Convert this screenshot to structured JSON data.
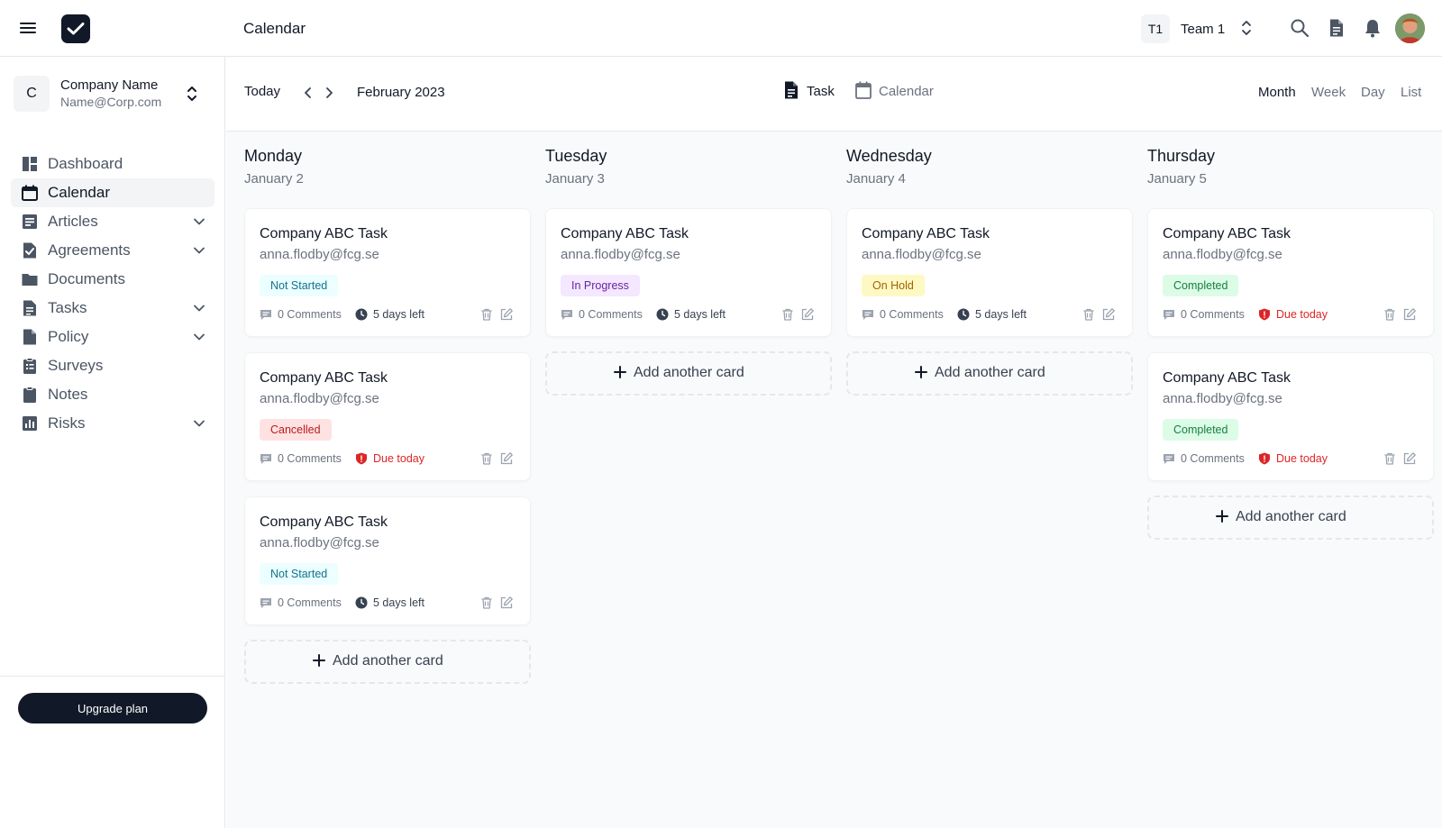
{
  "header": {
    "page_title": "Calendar",
    "team_initials": "T1",
    "team_name": "Team 1"
  },
  "sidebar": {
    "company_initial": "C",
    "company_name": "Company Name",
    "company_email": "Name@Corp.com",
    "items": [
      {
        "label": "Dashboard",
        "icon": "dashboard-icon",
        "expandable": false,
        "active": false
      },
      {
        "label": "Calendar",
        "icon": "calendar-icon",
        "expandable": false,
        "active": true
      },
      {
        "label": "Articles",
        "icon": "articles-icon",
        "expandable": true,
        "active": false
      },
      {
        "label": "Agreements",
        "icon": "agreements-icon",
        "expandable": true,
        "active": false
      },
      {
        "label": "Documents",
        "icon": "folder-icon",
        "expandable": false,
        "active": false
      },
      {
        "label": "Tasks",
        "icon": "tasks-icon",
        "expandable": true,
        "active": false
      },
      {
        "label": "Policy",
        "icon": "policy-icon",
        "expandable": true,
        "active": false
      },
      {
        "label": "Surveys",
        "icon": "surveys-icon",
        "expandable": false,
        "active": false
      },
      {
        "label": "Notes",
        "icon": "notes-icon",
        "expandable": false,
        "active": false
      },
      {
        "label": "Risks",
        "icon": "risks-icon",
        "expandable": true,
        "active": false
      }
    ],
    "upgrade_label": "Upgrade plan"
  },
  "toolbar": {
    "today_label": "Today",
    "month_label": "February 2023",
    "view_task": "Task",
    "view_calendar": "Calendar",
    "ranges": [
      "Month",
      "Week",
      "Day",
      "List"
    ],
    "active_range": "Month"
  },
  "board": {
    "add_card_label": "Add another card",
    "columns": [
      {
        "day": "Monday",
        "date": "January 2",
        "cards": [
          {
            "title": "Company ABC Task",
            "email": "anna.flodby@fcg.se",
            "status": "Not Started",
            "status_key": "notstarted",
            "comments": "0 Comments",
            "deadline": "5 days left",
            "due": false
          },
          {
            "title": "Company ABC Task",
            "email": "anna.flodby@fcg.se",
            "status": "Cancelled",
            "status_key": "cancelled",
            "comments": "0 Comments",
            "deadline": "Due today",
            "due": true
          },
          {
            "title": "Company ABC Task",
            "email": "anna.flodby@fcg.se",
            "status": "Not Started",
            "status_key": "notstarted",
            "comments": "0 Comments",
            "deadline": "5 days left",
            "due": false
          }
        ]
      },
      {
        "day": "Tuesday",
        "date": "January 3",
        "cards": [
          {
            "title": "Company ABC Task",
            "email": "anna.flodby@fcg.se",
            "status": "In Progress",
            "status_key": "inprogress",
            "comments": "0 Comments",
            "deadline": "5 days left",
            "due": false
          }
        ]
      },
      {
        "day": "Wednesday",
        "date": "January 4",
        "cards": [
          {
            "title": "Company ABC Task",
            "email": "anna.flodby@fcg.se",
            "status": "On Hold",
            "status_key": "onhold",
            "comments": "0 Comments",
            "deadline": "5 days left",
            "due": false
          }
        ]
      },
      {
        "day": "Thursday",
        "date": "January 5",
        "cards": [
          {
            "title": "Company ABC Task",
            "email": "anna.flodby@fcg.se",
            "status": "Completed",
            "status_key": "completed",
            "comments": "0 Comments",
            "deadline": "Due today",
            "due": true
          },
          {
            "title": "Company ABC Task",
            "email": "anna.flodby@fcg.se",
            "status": "Completed",
            "status_key": "completed",
            "comments": "0 Comments",
            "deadline": "Due today",
            "due": true
          }
        ]
      }
    ]
  }
}
